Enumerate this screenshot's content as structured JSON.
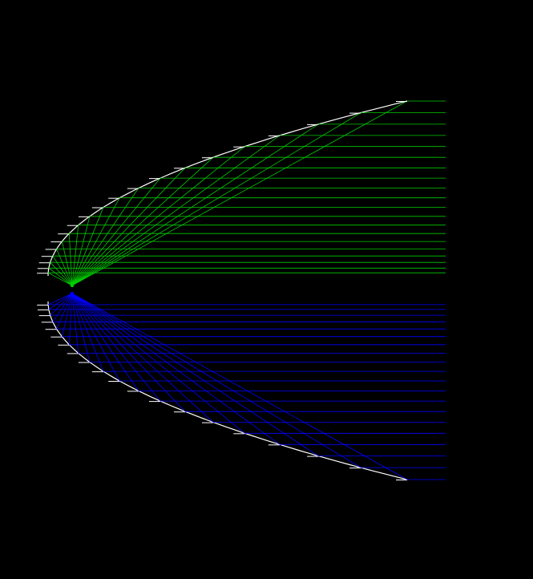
{
  "diagram": {
    "type": "parabolic-reflector-ray-trace",
    "background_color": "#000000",
    "mirror_color": "#ffffff",
    "upper_rays_color": "#00cc00",
    "lower_rays_color": "#0000ff",
    "upper_half": {
      "ray_count": 20
    },
    "lower_half": {
      "ray_count": 20
    }
  }
}
